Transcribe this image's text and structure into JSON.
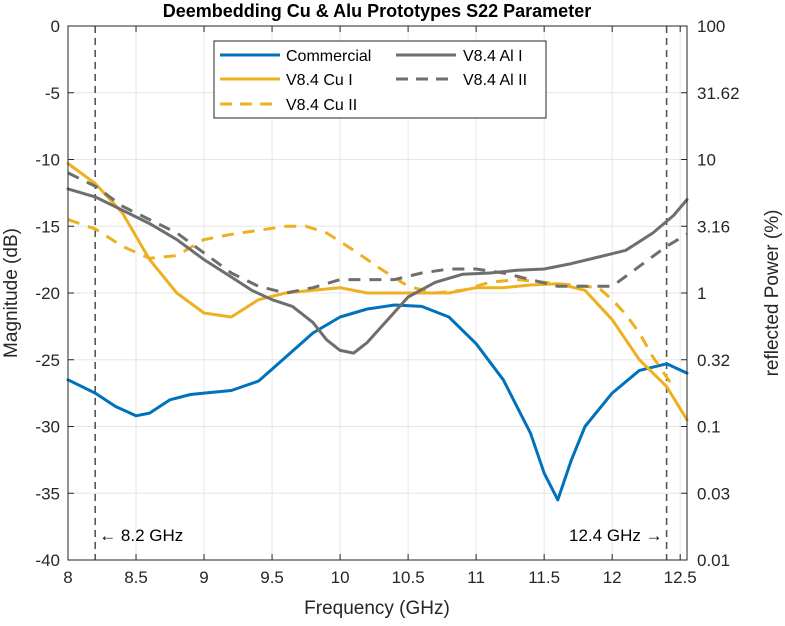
{
  "chart_data": {
    "type": "line",
    "title": "Deembedding Cu & Alu Prototypes S22 Parameter",
    "xlabel": "Frequency (GHz)",
    "ylabel": "Magnitude (dB)",
    "y2label": "reflected Power (%)",
    "xlim": [
      8,
      12.55
    ],
    "ylim": [
      -40,
      0
    ],
    "xticks": [
      "8",
      "8.5",
      "9",
      "9.5",
      "10",
      "10.5",
      "11",
      "11.5",
      "12",
      "12.5"
    ],
    "yticks": [
      "0",
      "-5",
      "-10",
      "-15",
      "-20",
      "-25",
      "-30",
      "-35",
      "-40"
    ],
    "y2ticks": [
      "100",
      "31.62",
      "10",
      "3.16",
      "1",
      "0.32",
      "0.1",
      "0.03",
      "0.01"
    ],
    "grid": true,
    "legend_position": "top-center",
    "vlines": [
      {
        "x": 8.2,
        "label": "← 8.2 GHz"
      },
      {
        "x": 12.4,
        "label": "12.4 GHz →"
      }
    ],
    "series": [
      {
        "name": "Commercial",
        "color": "#0072BD",
        "dash": "solid",
        "x": [
          8.0,
          8.2,
          8.35,
          8.5,
          8.6,
          8.75,
          8.9,
          9.0,
          9.2,
          9.4,
          9.6,
          9.8,
          10.0,
          10.2,
          10.4,
          10.6,
          10.8,
          11.0,
          11.2,
          11.4,
          11.5,
          11.6,
          11.7,
          11.8,
          12.0,
          12.2,
          12.4,
          12.55
        ],
        "y": [
          -26.5,
          -27.5,
          -28.5,
          -29.2,
          -29.0,
          -28.0,
          -27.6,
          -27.5,
          -27.3,
          -26.6,
          -24.8,
          -23.0,
          -21.8,
          -21.2,
          -20.9,
          -21.0,
          -21.8,
          -23.8,
          -26.5,
          -30.5,
          -33.5,
          -35.5,
          -32.5,
          -30.0,
          -27.5,
          -25.8,
          -25.3,
          -26.0
        ]
      },
      {
        "name": "V8.4 Cu I",
        "color": "#EDB120",
        "dash": "solid",
        "x": [
          8.0,
          8.2,
          8.4,
          8.6,
          8.8,
          9.0,
          9.2,
          9.4,
          9.6,
          9.8,
          10.0,
          10.2,
          10.5,
          10.8,
          11.0,
          11.2,
          11.4,
          11.6,
          11.8,
          12.0,
          12.2,
          12.4,
          12.55
        ],
        "y": [
          -10.3,
          -11.8,
          -14.0,
          -17.5,
          -20.0,
          -21.5,
          -21.8,
          -20.5,
          -20.0,
          -19.8,
          -19.6,
          -20.0,
          -20.0,
          -20.0,
          -19.6,
          -19.6,
          -19.4,
          -19.3,
          -19.8,
          -22.0,
          -25.0,
          -27.0,
          -29.5
        ]
      },
      {
        "name": "V8.4 Cu II",
        "color": "#EDB120",
        "dash": "dashed",
        "x": [
          8.0,
          8.2,
          8.4,
          8.6,
          8.8,
          9.0,
          9.2,
          9.4,
          9.6,
          9.75,
          9.9,
          10.1,
          10.3,
          10.5,
          10.7,
          10.9,
          11.1,
          11.3,
          11.5,
          11.7,
          11.9,
          12.0,
          12.1,
          12.2,
          12.3,
          12.4,
          12.45
        ],
        "y": [
          -14.5,
          -15.2,
          -16.5,
          -17.4,
          -17.2,
          -16.0,
          -15.6,
          -15.3,
          -15.0,
          -15.0,
          -15.5,
          -16.8,
          -18.2,
          -19.5,
          -20.0,
          -19.8,
          -19.2,
          -19.0,
          -19.2,
          -19.4,
          -19.6,
          -20.5,
          -21.6,
          -23.0,
          -24.8,
          -26.3,
          -27.0
        ]
      },
      {
        "name": "V8.4 Al I",
        "color": "#6E6E6E",
        "dash": "solid",
        "x": [
          8.0,
          8.2,
          8.4,
          8.6,
          8.8,
          9.0,
          9.2,
          9.35,
          9.5,
          9.65,
          9.8,
          9.9,
          10.0,
          10.1,
          10.2,
          10.35,
          10.5,
          10.7,
          10.9,
          11.1,
          11.3,
          11.5,
          11.7,
          11.9,
          12.1,
          12.3,
          12.45,
          12.55
        ],
        "y": [
          -12.2,
          -12.8,
          -13.8,
          -14.8,
          -16.0,
          -17.5,
          -18.8,
          -19.8,
          -20.5,
          -21.0,
          -22.2,
          -23.5,
          -24.3,
          -24.5,
          -23.7,
          -22.0,
          -20.3,
          -19.2,
          -18.6,
          -18.5,
          -18.3,
          -18.2,
          -17.8,
          -17.3,
          -16.8,
          -15.5,
          -14.2,
          -13.0
        ]
      },
      {
        "name": "V8.4 Al II",
        "color": "#6E6E6E",
        "dash": "dashed",
        "x": [
          8.0,
          8.2,
          8.4,
          8.6,
          8.8,
          9.0,
          9.2,
          9.4,
          9.6,
          9.8,
          10.0,
          10.2,
          10.4,
          10.6,
          10.8,
          11.0,
          11.2,
          11.4,
          11.6,
          11.8,
          12.0,
          12.2,
          12.4,
          12.55
        ],
        "y": [
          -11.0,
          -12.0,
          -13.5,
          -14.5,
          -15.5,
          -17.0,
          -18.5,
          -19.5,
          -20.0,
          -19.6,
          -19.0,
          -19.0,
          -19.0,
          -18.5,
          -18.2,
          -18.2,
          -18.5,
          -19.0,
          -19.5,
          -19.5,
          -19.5,
          -18.0,
          -16.5,
          -15.6
        ]
      }
    ]
  }
}
